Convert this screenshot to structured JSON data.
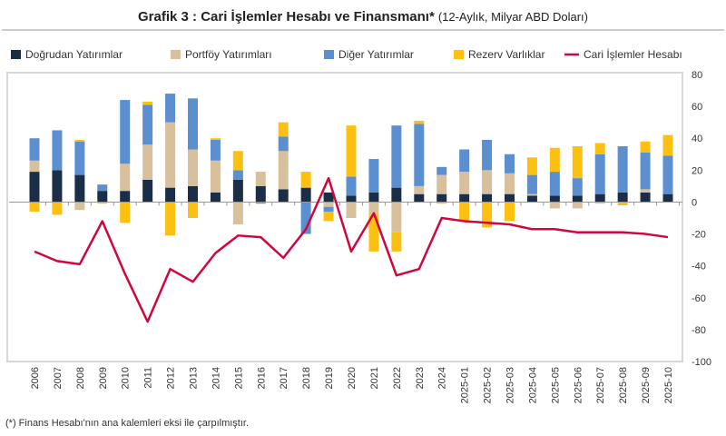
{
  "chart_data": {
    "type": "bar",
    "title_bold": "Grafik 3 : Cari İşlemler Hesabı ve Finansmanı*",
    "title_normal": "(12-Aylık, Milyar ABD Doları)",
    "footnote": "(*) Finans Hesabı'nın ana kalemleri eksi ile çarpılmıştır.",
    "ylim": [
      -100,
      80
    ],
    "yticks": [
      80,
      60,
      40,
      20,
      0,
      -20,
      -40,
      -60,
      -80,
      -100
    ],
    "y_axis_side": "right",
    "legend_placement": "top",
    "grid": false,
    "categories": [
      "2006",
      "2007",
      "2008",
      "2009",
      "2010",
      "2011",
      "2012",
      "2013",
      "2014",
      "2015",
      "2016",
      "2017",
      "2018",
      "2019",
      "2020",
      "2021",
      "2022",
      "2023",
      "2024",
      "2025-01",
      "2025-02",
      "2025-03",
      "2025-04",
      "2025-05",
      "2025-06",
      "2025-07",
      "2025-08",
      "2025-09",
      "2025-10"
    ],
    "series": [
      {
        "name": "Doğrudan Yatırımlar",
        "type": "bar",
        "color": "#1a2e47",
        "values": [
          19,
          20,
          17,
          7,
          7,
          14,
          9,
          10,
          6,
          14,
          10,
          8,
          9,
          6,
          4,
          6,
          9,
          5,
          5,
          5,
          5,
          5,
          4,
          4,
          4,
          5,
          6,
          6,
          5
        ]
      },
      {
        "name": "Portföy Yatırımları",
        "type": "bar",
        "color": "#d8c09c",
        "values": [
          7,
          0,
          -5,
          0,
          17,
          22,
          41,
          23,
          20,
          -14,
          9,
          24,
          0,
          -3,
          -10,
          -8,
          -19,
          5,
          12,
          14,
          15,
          13,
          1,
          -4,
          -4,
          -1,
          0,
          2,
          0
        ]
      },
      {
        "name": "Diğer Yatırımlar",
        "type": "bar",
        "color": "#5b8fd0",
        "values": [
          14,
          25,
          21,
          4,
          40,
          25,
          18,
          32,
          13,
          6,
          -1,
          9,
          -20,
          -3,
          12,
          21,
          39,
          39,
          5,
          14,
          19,
          12,
          12,
          15,
          11,
          25,
          29,
          23,
          24
        ]
      },
      {
        "name": "Rezerv Varlıklar",
        "type": "bar",
        "color": "#fcc010",
        "values": [
          -6,
          -8,
          1,
          -1,
          -13,
          2,
          -21,
          -10,
          1,
          12,
          0,
          9,
          10,
          -6,
          32,
          -23,
          -12,
          2,
          -1,
          -12,
          -16,
          -12,
          11,
          15,
          20,
          7,
          -2,
          7,
          13
        ]
      },
      {
        "name": "Cari İşlemler Hesabı",
        "type": "line",
        "color": "#d0063c",
        "values": [
          -31,
          -37,
          -39,
          -12,
          -45,
          -75,
          -42,
          -50,
          -32,
          -21,
          -22,
          -35,
          -17,
          15,
          -31,
          -7,
          -46,
          -42,
          -10,
          -12,
          -13,
          -14,
          -17,
          -17,
          -19,
          -19,
          -19,
          -20,
          -22
        ]
      }
    ]
  }
}
